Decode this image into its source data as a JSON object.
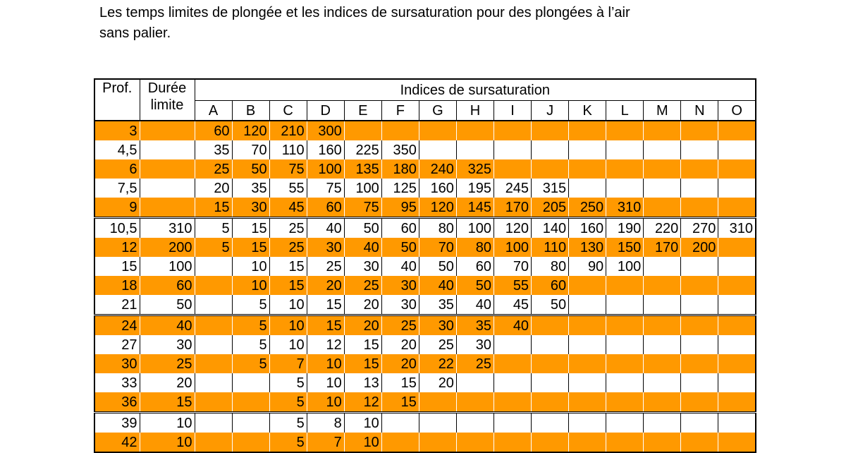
{
  "title_lines": [
    "Les temps limites de plongée et les indices de sursaturation pour des plongées à l’air",
    "sans palier."
  ],
  "table": {
    "header": {
      "depth": "Prof.",
      "limit_lines": [
        "Durée",
        "limite"
      ],
      "indices": "Indices de sursaturation",
      "letters": [
        "A",
        "B",
        "C",
        "D",
        "E",
        "F",
        "G",
        "H",
        "I",
        "J",
        "K",
        "L",
        "M",
        "N",
        "O"
      ]
    },
    "groups": [
      {
        "rows": [
          {
            "depth": "3",
            "limit": null,
            "indices": [
              60,
              120,
              210,
              300,
              null,
              null,
              null,
              null,
              null,
              null,
              null,
              null,
              null,
              null,
              null
            ]
          },
          {
            "depth": "4,5",
            "limit": null,
            "indices": [
              35,
              70,
              110,
              160,
              225,
              350,
              null,
              null,
              null,
              null,
              null,
              null,
              null,
              null,
              null
            ]
          },
          {
            "depth": "6",
            "limit": null,
            "indices": [
              25,
              50,
              75,
              100,
              135,
              180,
              240,
              325,
              null,
              null,
              null,
              null,
              null,
              null,
              null
            ]
          },
          {
            "depth": "7,5",
            "limit": null,
            "indices": [
              20,
              35,
              55,
              75,
              100,
              125,
              160,
              195,
              245,
              315,
              null,
              null,
              null,
              null,
              null
            ]
          },
          {
            "depth": "9",
            "limit": null,
            "indices": [
              15,
              30,
              45,
              60,
              75,
              95,
              120,
              145,
              170,
              205,
              250,
              310,
              null,
              null,
              null
            ]
          }
        ]
      },
      {
        "rows": [
          {
            "depth": "10,5",
            "limit": 310,
            "indices": [
              5,
              15,
              25,
              40,
              50,
              60,
              80,
              100,
              120,
              140,
              160,
              190,
              220,
              270,
              310
            ]
          },
          {
            "depth": "12",
            "limit": 200,
            "indices": [
              5,
              15,
              25,
              30,
              40,
              50,
              70,
              80,
              100,
              110,
              130,
              150,
              170,
              200,
              null
            ]
          },
          {
            "depth": "15",
            "limit": 100,
            "indices": [
              null,
              10,
              15,
              25,
              30,
              40,
              50,
              60,
              70,
              80,
              90,
              100,
              null,
              null,
              null
            ]
          },
          {
            "depth": "18",
            "limit": 60,
            "indices": [
              null,
              10,
              15,
              20,
              25,
              30,
              40,
              50,
              55,
              60,
              null,
              null,
              null,
              null,
              null
            ]
          },
          {
            "depth": "21",
            "limit": 50,
            "indices": [
              null,
              5,
              10,
              15,
              20,
              30,
              35,
              40,
              45,
              50,
              null,
              null,
              null,
              null,
              null
            ]
          }
        ]
      },
      {
        "rows": [
          {
            "depth": "24",
            "limit": 40,
            "indices": [
              null,
              5,
              10,
              15,
              20,
              25,
              30,
              35,
              40,
              null,
              null,
              null,
              null,
              null,
              null
            ]
          },
          {
            "depth": "27",
            "limit": 30,
            "indices": [
              null,
              5,
              10,
              12,
              15,
              20,
              25,
              30,
              null,
              null,
              null,
              null,
              null,
              null,
              null
            ]
          },
          {
            "depth": "30",
            "limit": 25,
            "indices": [
              null,
              5,
              7,
              10,
              15,
              20,
              22,
              25,
              null,
              null,
              null,
              null,
              null,
              null,
              null
            ]
          },
          {
            "depth": "33",
            "limit": 20,
            "indices": [
              null,
              null,
              5,
              10,
              13,
              15,
              20,
              null,
              null,
              null,
              null,
              null,
              null,
              null,
              null
            ]
          },
          {
            "depth": "36",
            "limit": 15,
            "indices": [
              null,
              null,
              5,
              10,
              12,
              15,
              null,
              null,
              null,
              null,
              null,
              null,
              null,
              null,
              null
            ]
          }
        ]
      },
      {
        "rows": [
          {
            "depth": "39",
            "limit": 10,
            "indices": [
              null,
              null,
              5,
              8,
              10,
              null,
              null,
              null,
              null,
              null,
              null,
              null,
              null,
              null,
              null
            ]
          },
          {
            "depth": "42",
            "limit": 10,
            "indices": [
              null,
              null,
              5,
              7,
              10,
              null,
              null,
              null,
              null,
              null,
              null,
              null,
              null,
              null,
              null
            ]
          }
        ]
      }
    ]
  }
}
